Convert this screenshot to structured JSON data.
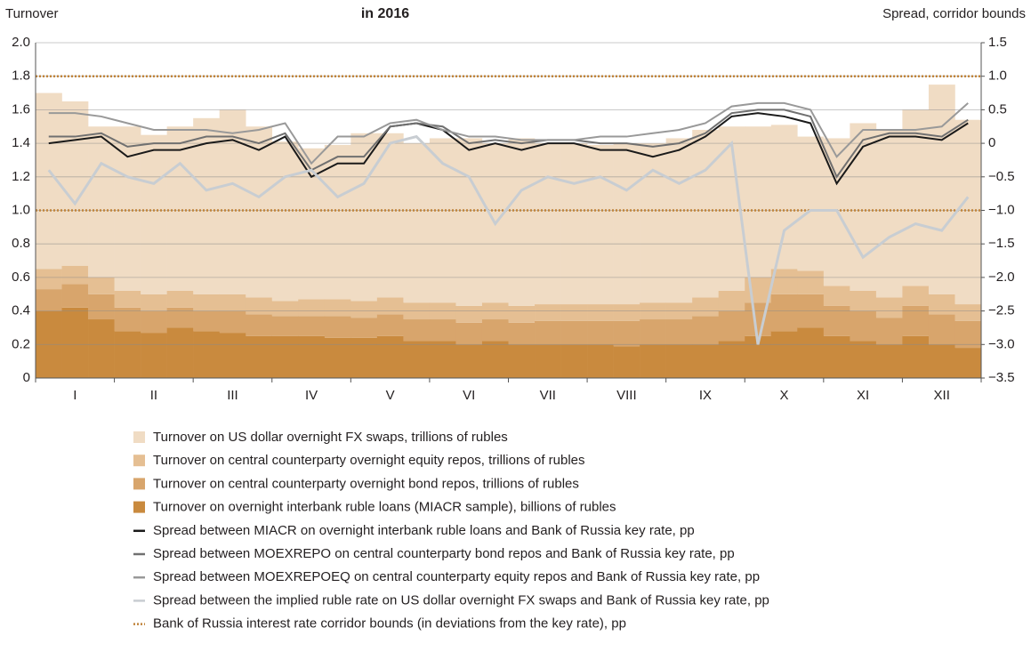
{
  "chart_data": {
    "type": "bar-line",
    "title": "in 2016",
    "y_label": "Turnover",
    "y2_label": "Spread, corridor bounds",
    "categories": [
      null,
      "I",
      null,
      null,
      "II",
      null,
      null,
      "III",
      null,
      null,
      "IV",
      null,
      null,
      "V",
      null,
      null,
      "VI",
      null,
      null,
      "VII",
      null,
      null,
      "VIII",
      null,
      null,
      "IX",
      null,
      null,
      "X",
      null,
      null,
      "XI",
      null,
      null,
      "XII",
      null
    ],
    "ylim": [
      0,
      2
    ],
    "yticks": [
      0,
      {
        "value": 0.2,
        "label": "0.2"
      },
      {
        "value": 0.4,
        "label": "0.4"
      },
      {
        "value": 0.6,
        "label": "0.6"
      },
      {
        "value": 0.8,
        "label": "0.8"
      },
      {
        "value": 1,
        "label": "1.0"
      },
      {
        "value": 1.2,
        "label": "1.2"
      },
      {
        "value": 1.4,
        "label": "1.4"
      },
      {
        "value": 1.6,
        "label": "1.6"
      },
      {
        "value": 1.8,
        "label": "1.8"
      },
      {
        "value": 2,
        "label": "2.0"
      }
    ],
    "y2lim": [
      -3.5,
      1.5
    ],
    "y2ticks": [
      {
        "value": -3.5,
        "label": "−3.5"
      },
      {
        "value": -3,
        "label": "−3.0"
      },
      {
        "value": -2.5,
        "label": "−2.5"
      },
      {
        "value": -2,
        "label": "−2.0"
      },
      {
        "value": -1.5,
        "label": "−1.5"
      },
      {
        "value": -1,
        "label": "−1.0"
      },
      {
        "value": -0.5,
        "label": "−0.5"
      },
      0,
      0.5,
      {
        "value": 1,
        "label": "1.0"
      },
      1.5
    ],
    "grid": true,
    "series": [
      {
        "name": "Turnover on US dollar overnight FX swaps, trillions of rubles",
        "kind": "bar",
        "color": "#f0dcc4",
        "values": [
          1.05,
          0.98,
          0.9,
          0.98,
          0.95,
          0.98,
          1.05,
          1.1,
          1.02,
          0.95,
          0.9,
          0.92,
          1.0,
          0.98,
          0.95,
          0.98,
          1.0,
          0.95,
          1.0,
          0.96,
          0.96,
          0.95,
          0.96,
          0.95,
          0.98,
          1.0,
          0.98,
          0.9,
          0.86,
          0.8,
          0.88,
          1.0,
          1.0,
          1.05,
          1.25,
          1.1
        ]
      },
      {
        "name": "Turnover on central counterparty overnight equity repos, trillions of rubles",
        "kind": "bar",
        "color": "#e5bf93",
        "values": [
          0.12,
          0.11,
          0.1,
          0.1,
          0.1,
          0.1,
          0.1,
          0.1,
          0.1,
          0.09,
          0.1,
          0.1,
          0.1,
          0.1,
          0.1,
          0.1,
          0.1,
          0.1,
          0.1,
          0.1,
          0.1,
          0.1,
          0.1,
          0.1,
          0.1,
          0.11,
          0.12,
          0.15,
          0.15,
          0.14,
          0.12,
          0.12,
          0.12,
          0.12,
          0.12,
          0.1
        ]
      },
      {
        "name": "Turnover on central counterparty overnight bond repos, trillions of rubles",
        "kind": "bar",
        "color": "#d8a56c",
        "values": [
          0.13,
          0.14,
          0.15,
          0.14,
          0.13,
          0.12,
          0.12,
          0.13,
          0.13,
          0.12,
          0.12,
          0.13,
          0.12,
          0.13,
          0.13,
          0.13,
          0.13,
          0.13,
          0.13,
          0.14,
          0.14,
          0.14,
          0.15,
          0.15,
          0.15,
          0.17,
          0.18,
          0.2,
          0.22,
          0.2,
          0.18,
          0.18,
          0.16,
          0.18,
          0.18,
          0.16
        ]
      },
      {
        "name": "Turnover on overnight interbank ruble loans (MIACR sample), billions of rubles",
        "kind": "bar",
        "color": "#c98a3e",
        "values": [
          0.4,
          0.42,
          0.35,
          0.28,
          0.27,
          0.3,
          0.28,
          0.27,
          0.25,
          0.25,
          0.25,
          0.24,
          0.24,
          0.25,
          0.22,
          0.22,
          0.2,
          0.22,
          0.2,
          0.2,
          0.2,
          0.2,
          0.19,
          0.2,
          0.2,
          0.2,
          0.22,
          0.25,
          0.28,
          0.3,
          0.25,
          0.22,
          0.2,
          0.25,
          0.2,
          0.18
        ]
      },
      {
        "name": "Spread between MIACR on overnight interbank ruble loans and Bank of Russia key rate, pp",
        "kind": "line",
        "axis": "y2",
        "color": "#1a1a1a",
        "values": [
          0,
          0.05,
          0.1,
          -0.2,
          -0.1,
          -0.1,
          0,
          0.05,
          -0.1,
          0.1,
          -0.5,
          -0.3,
          -0.3,
          0.25,
          0.3,
          0.2,
          -0.1,
          0,
          -0.1,
          0,
          0,
          -0.1,
          -0.1,
          -0.2,
          -0.1,
          0.1,
          0.4,
          0.45,
          0.4,
          0.3,
          -0.6,
          -0.05,
          0.1,
          0.1,
          0.05,
          0.3
        ]
      },
      {
        "name": "Spread between MOEXREPO on central counterparty bond repos and Bank of Russia key rate, pp",
        "kind": "line",
        "axis": "y2",
        "color": "#707070",
        "values": [
          0.1,
          0.1,
          0.15,
          -0.05,
          0,
          0,
          0.1,
          0.1,
          0,
          0.15,
          -0.4,
          -0.2,
          -0.2,
          0.25,
          0.3,
          0.25,
          0,
          0.05,
          0,
          0.05,
          0.05,
          0,
          0,
          -0.05,
          0,
          0.15,
          0.45,
          0.5,
          0.5,
          0.4,
          -0.5,
          0.05,
          0.15,
          0.15,
          0.1,
          0.35
        ]
      },
      {
        "name": "Spread between MOEXREPOEQ on central counterparty equity repos and Bank of Russia key rate, pp",
        "kind": "line",
        "axis": "y2",
        "color": "#999999",
        "values": [
          0.45,
          0.45,
          0.4,
          0.3,
          0.2,
          0.2,
          0.2,
          0.15,
          0.2,
          0.3,
          -0.3,
          0.1,
          0.1,
          0.3,
          0.35,
          0.2,
          0.1,
          0.1,
          0.05,
          0.05,
          0.05,
          0.1,
          0.1,
          0.15,
          0.2,
          0.3,
          0.55,
          0.6,
          0.6,
          0.5,
          -0.2,
          0.2,
          0.2,
          0.2,
          0.25,
          0.6
        ]
      },
      {
        "name": "Spread between the implied ruble rate on US dollar overnight FX swaps and Bank of Russia key rate, pp",
        "kind": "line",
        "axis": "y2",
        "color": "#c8cdd2",
        "values": [
          -0.4,
          -0.9,
          -0.3,
          -0.5,
          -0.6,
          -0.3,
          -0.7,
          -0.6,
          -0.8,
          -0.5,
          -0.4,
          -0.8,
          -0.6,
          0,
          0.1,
          -0.3,
          -0.5,
          -1.2,
          -0.7,
          -0.5,
          -0.6,
          -0.5,
          -0.7,
          -0.4,
          -0.6,
          -0.4,
          0,
          -3,
          -1.3,
          -1,
          -1,
          -1.7,
          -1.4,
          -1.2,
          -1.3,
          -0.8
        ]
      }
    ],
    "corridor": {
      "name": "Bank of Russia interest rate corridor bounds (in deviations from the key rate), pp",
      "color": "#c0843b",
      "values": [
        -1,
        1
      ]
    }
  }
}
